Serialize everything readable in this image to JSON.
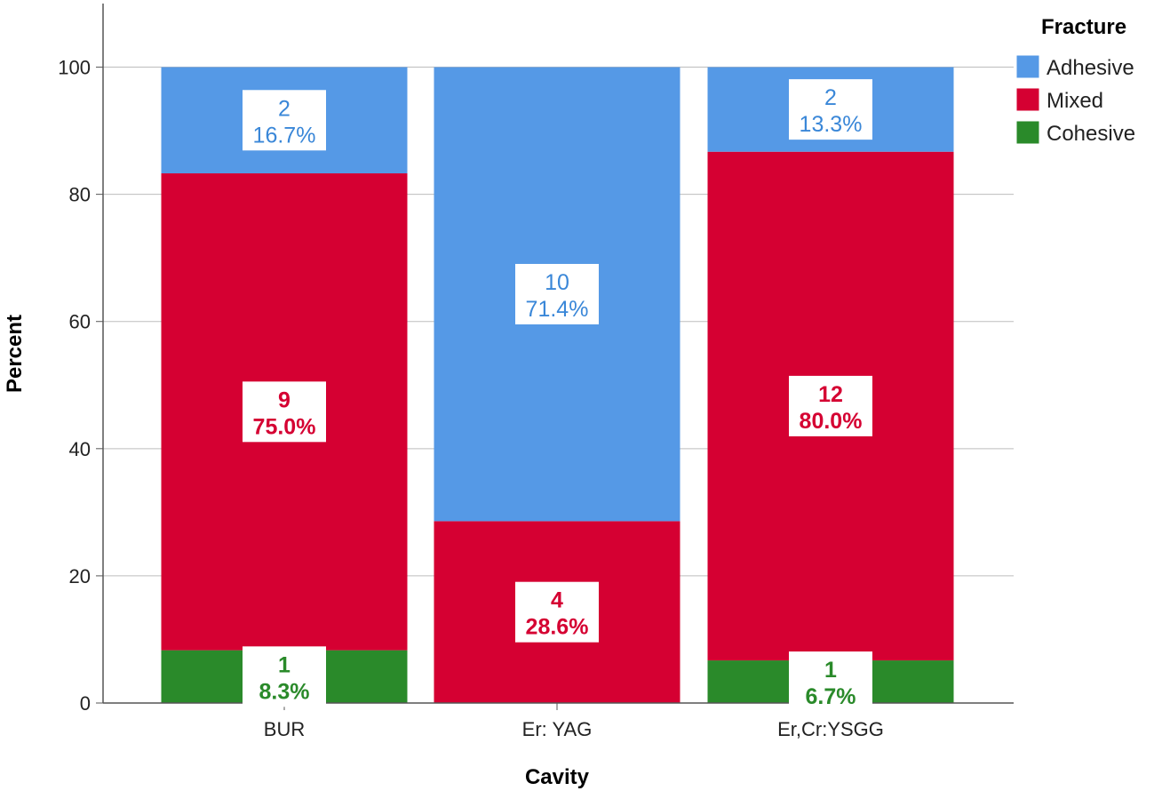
{
  "chart_data": {
    "type": "bar",
    "stacked": true,
    "xlabel": "Cavity",
    "ylabel": "Percent",
    "ylim": [
      0,
      110
    ],
    "yticks": [
      0,
      20,
      40,
      60,
      80,
      100
    ],
    "grid": "horizontal",
    "categories": [
      "BUR",
      "Er: YAG",
      "Er,Cr:YSGG"
    ],
    "legend": {
      "title": "Fracture",
      "placement": "top-right"
    },
    "series": [
      {
        "name": "Cohesive",
        "color": "#2a8a2a",
        "values": [
          8.3,
          0,
          6.7
        ],
        "counts": [
          "1",
          "",
          "1"
        ],
        "labels": [
          "8.3%",
          "",
          "6.7%"
        ]
      },
      {
        "name": "Mixed",
        "color": "#d50032",
        "values": [
          75.0,
          28.6,
          80.0
        ],
        "counts": [
          "9",
          "4",
          "12"
        ],
        "labels": [
          "75.0%",
          "28.6%",
          "80.0%"
        ]
      },
      {
        "name": "Adhesive",
        "color": "#5599e6",
        "values": [
          16.7,
          71.4,
          13.3
        ],
        "counts": [
          "2",
          "10",
          "2"
        ],
        "labels": [
          "16.7%",
          "71.4%",
          "13.3%"
        ]
      }
    ],
    "legend_order": [
      "Adhesive",
      "Mixed",
      "Cohesive"
    ]
  }
}
